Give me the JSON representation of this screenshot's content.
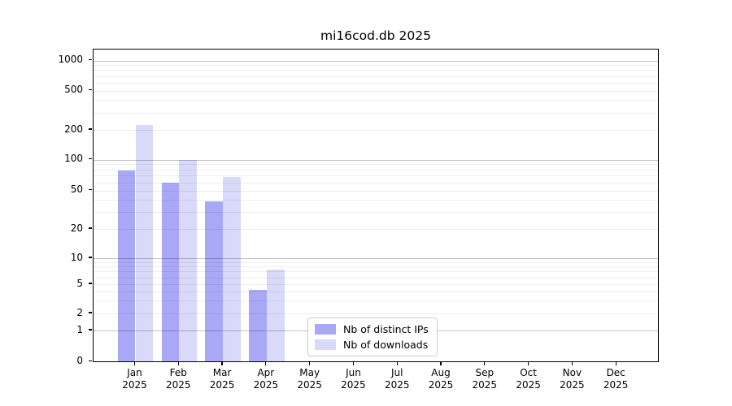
{
  "figure": {
    "title": "mi16cod.db 2025",
    "background_color": "#ffffff"
  },
  "chart_data": {
    "type": "bar",
    "title": "mi16cod.db 2025",
    "categories": [
      "Jan 2025",
      "Feb 2025",
      "Mar 2025",
      "Apr 2025",
      "May 2025",
      "Jun 2025",
      "Jul 2025",
      "Aug 2025",
      "Sep 2025",
      "Oct 2025",
      "Nov 2025",
      "Dec 2025"
    ],
    "series": [
      {
        "name": "Nb of distinct IPs",
        "color": "#a8a8f7",
        "values": [
          75,
          57,
          37,
          4,
          0,
          0,
          0,
          0,
          0,
          0,
          0,
          0
        ]
      },
      {
        "name": "Nb of downloads",
        "color": "#d9d9f9",
        "values": [
          215,
          95,
          65,
          7,
          0,
          0,
          0,
          0,
          0,
          0,
          0,
          0
        ]
      }
    ],
    "xlabel": "",
    "ylabel": "",
    "y_ticks": [
      0,
      1,
      2,
      5,
      10,
      20,
      50,
      100,
      200,
      500,
      1000
    ],
    "y_scale": "log-like",
    "ylim": [
      0,
      1400
    ],
    "grid": true,
    "legend": {
      "position": "lower center",
      "entries": [
        "Nb of distinct IPs",
        "Nb of downloads"
      ]
    }
  }
}
